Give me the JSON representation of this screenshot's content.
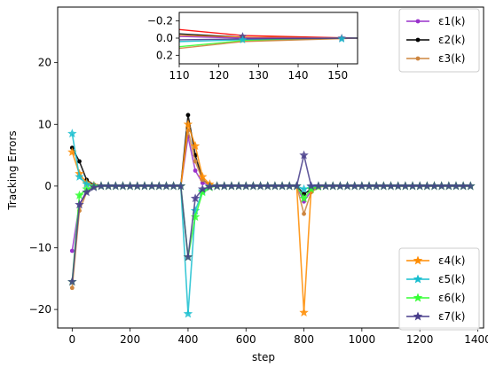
{
  "chart_data": {
    "type": "line",
    "xlabel": "step",
    "ylabel": "Tracking Errors",
    "xlim": [
      -50,
      1420
    ],
    "ylim": [
      -23,
      29
    ],
    "xticks": [
      0,
      200,
      400,
      600,
      800,
      1000,
      1200,
      1400
    ],
    "yticks": [
      -20,
      -10,
      0,
      10,
      20
    ],
    "legend_top_position": "top-right",
    "legend_bottom_position": "bottom-right",
    "x": [
      0,
      25,
      50,
      75,
      100,
      125,
      150,
      175,
      200,
      225,
      250,
      275,
      300,
      325,
      350,
      375,
      400,
      425,
      450,
      475,
      500,
      525,
      550,
      575,
      600,
      625,
      650,
      675,
      700,
      725,
      750,
      775,
      800,
      825,
      850,
      875,
      900,
      925,
      950,
      975,
      1000,
      1025,
      1050,
      1075,
      1100,
      1125,
      1150,
      1175,
      1200,
      1225,
      1250,
      1275,
      1300,
      1325,
      1350,
      1375
    ],
    "series": [
      {
        "name": "ε1(k)",
        "color": "#9932cc",
        "marker": "dot",
        "values": [
          -10.5,
          -3,
          -0.8,
          -0.2,
          0,
          0,
          0,
          0,
          0,
          0,
          0,
          0,
          0,
          0,
          0,
          0,
          8,
          2.5,
          0.5,
          0.1,
          0,
          0,
          0,
          0,
          0,
          0,
          0,
          0,
          0,
          0,
          0,
          0,
          -2.5,
          -0.8,
          -0.1,
          0,
          0,
          0,
          0,
          0,
          0,
          0,
          0,
          0,
          0,
          0,
          0,
          0,
          0,
          0,
          0,
          0,
          0,
          0,
          0,
          0
        ]
      },
      {
        "name": "ε2(k)",
        "color": "#000000",
        "marker": "dot",
        "values": [
          6.2,
          4,
          1,
          0.2,
          0,
          0,
          0,
          0,
          0,
          0,
          0,
          0,
          0,
          0,
          0,
          0,
          11.5,
          5,
          1,
          0.2,
          0,
          0,
          0,
          0,
          0,
          0,
          0,
          0,
          0,
          0,
          0,
          0,
          -1.3,
          -0.5,
          0,
          0,
          0,
          0,
          0,
          0,
          0,
          0,
          0,
          0,
          0,
          0,
          0,
          0,
          0,
          0,
          0,
          0,
          0,
          0,
          0,
          0
        ]
      },
      {
        "name": "ε3(k)",
        "color": "#cd853f",
        "marker": "dot",
        "values": [
          -16.5,
          -4,
          -1,
          -0.2,
          0,
          0,
          0,
          0,
          0,
          0,
          0,
          0,
          0,
          0,
          0,
          0,
          9,
          4,
          1,
          0.2,
          0,
          0,
          0,
          0,
          0,
          0,
          0,
          0,
          0,
          0,
          0,
          0,
          -4.5,
          -1,
          -0.2,
          0,
          0,
          0,
          0,
          0,
          0,
          0,
          0,
          0,
          0,
          0,
          0,
          0,
          0,
          0,
          0,
          0,
          0,
          0,
          0,
          0
        ]
      },
      {
        "name": "ε4(k)",
        "color": "#ff8c00",
        "marker": "star",
        "values": [
          5.5,
          2,
          0.5,
          0.1,
          0,
          0,
          0,
          0,
          0,
          0,
          0,
          0,
          0,
          0,
          0,
          0,
          10,
          6.5,
          1.5,
          0.3,
          0,
          0,
          0,
          0,
          0,
          0,
          0,
          0,
          0,
          0,
          0,
          0,
          -20.5,
          -0.5,
          0,
          0,
          0,
          0,
          0,
          0,
          0,
          0,
          0,
          0,
          0,
          0,
          0,
          0,
          0,
          0,
          0,
          0,
          0,
          0,
          0,
          0
        ]
      },
      {
        "name": "ε5(k)",
        "color": "#17becf",
        "marker": "star",
        "values": [
          8.5,
          1.5,
          0.3,
          0,
          0,
          0,
          0,
          0,
          0,
          0,
          0,
          0,
          0,
          0,
          0,
          0,
          -20.7,
          -4,
          -0.8,
          -0.1,
          0,
          0,
          0,
          0,
          0,
          0,
          0,
          0,
          0,
          0,
          0,
          0,
          -0.5,
          -0.1,
          0,
          0,
          0,
          0,
          0,
          0,
          0,
          0,
          0,
          0,
          0,
          0,
          0,
          0,
          0,
          0,
          0,
          0,
          0,
          0,
          0,
          0
        ]
      },
      {
        "name": "ε6(k)",
        "color": "#33ff33",
        "marker": "star",
        "values": [
          -15.5,
          -1.5,
          -0.5,
          -0.1,
          0,
          0,
          0,
          0,
          0,
          0,
          0,
          0,
          0,
          0,
          0,
          0,
          -11.5,
          -5,
          -1,
          -0.2,
          0,
          0,
          0,
          0,
          0,
          0,
          0,
          0,
          0,
          0,
          0,
          0,
          -2,
          -0.5,
          -0.1,
          0,
          0,
          0,
          0,
          0,
          0,
          0,
          0,
          0,
          0,
          0,
          0,
          0,
          0,
          0,
          0,
          0,
          0,
          0,
          0,
          0
        ]
      },
      {
        "name": "ε7(k)",
        "color": "#483d8b",
        "marker": "star",
        "values": [
          -15.5,
          -3,
          -1,
          -0.2,
          0,
          0,
          0,
          0,
          0,
          0,
          0,
          0,
          0,
          0,
          0,
          0,
          -11.5,
          -2,
          -0.5,
          -0.1,
          0,
          0,
          0,
          0,
          0,
          0,
          0,
          0,
          0,
          0,
          0,
          0,
          5,
          0,
          0,
          0,
          0,
          0,
          0,
          0,
          0,
          0,
          0,
          0,
          0,
          0,
          0,
          0,
          0,
          0,
          0,
          0,
          0,
          0,
          0,
          0
        ]
      }
    ],
    "inset": {
      "xlim": [
        110,
        155
      ],
      "ylim": [
        0.3,
        -0.3
      ],
      "xticks": [
        110,
        120,
        130,
        140,
        150
      ],
      "yticks": [
        -0.2,
        0.0,
        0.2
      ],
      "ytick_labels": [
        "−0.2",
        "0.0",
        "0.2"
      ],
      "lines": [
        {
          "color": "#ff0000",
          "x": [
            110,
            126,
            155
          ],
          "y": [
            -0.1,
            -0.03,
            0
          ]
        },
        {
          "color": "#000000",
          "x": [
            110,
            126,
            155
          ],
          "y": [
            -0.05,
            -0.01,
            0
          ]
        },
        {
          "color": "#ff8c00",
          "x": [
            110,
            126,
            155
          ],
          "y": [
            -0.03,
            -0.01,
            0
          ]
        },
        {
          "color": "#9932cc",
          "x": [
            110,
            126,
            155
          ],
          "y": [
            -0.02,
            0,
            0
          ]
        },
        {
          "color": "#17becf",
          "x": [
            110,
            126,
            155
          ],
          "y": [
            0.04,
            0.02,
            0
          ]
        },
        {
          "color": "#33ff33",
          "x": [
            110,
            126,
            155
          ],
          "y": [
            0.1,
            0.03,
            0
          ]
        },
        {
          "color": "#cd853f",
          "x": [
            110,
            126,
            155
          ],
          "y": [
            0.12,
            0.04,
            0
          ]
        },
        {
          "color": "#483d8b",
          "x": [
            110,
            126,
            155
          ],
          "y": [
            0.02,
            0.01,
            0
          ]
        }
      ],
      "markers": [
        {
          "color": "#483d8b",
          "x": 126,
          "y": -0.02
        },
        {
          "color": "#17becf",
          "x": 126,
          "y": 0.02
        },
        {
          "color": "#483d8b",
          "x": 151,
          "y": 0
        },
        {
          "color": "#17becf",
          "x": 151,
          "y": 0.01
        }
      ]
    }
  }
}
